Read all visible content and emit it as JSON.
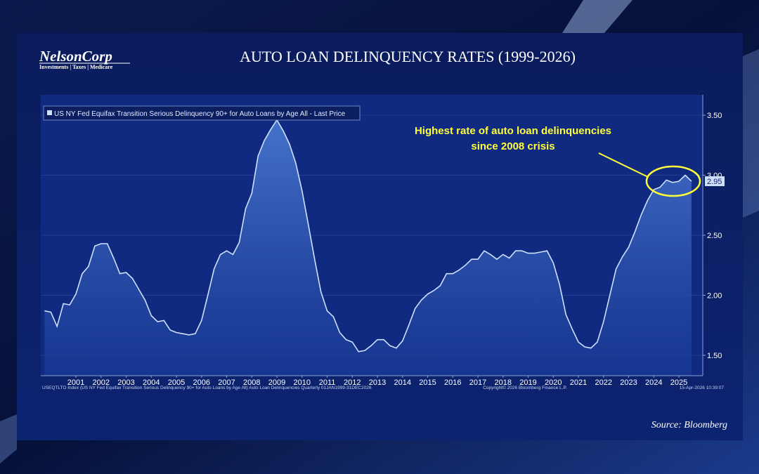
{
  "brand": {
    "name": "NelsonCorp",
    "tagline": "Investments | Taxes | Medicare"
  },
  "chart_data": {
    "type": "area",
    "title": "AUTO LOAN DELINQUENCY RATES (1999-2026)",
    "annotation": "Highest rate of auto loan delinquencies since 2008 crisis",
    "source": "Source: Bloomberg",
    "footer_left": "USEQTLTO Index (US NY Fed Equifax Transition Serious Delinquency 90+ for Auto Loans by Age All) Auto Loan Delinquencies Quarterly 01JAN1999-31DEC2026",
    "footer_center": "Copyright© 2026 Bloomberg Finance L.P.",
    "footer_right": "15-Apr-2026 10:39:07",
    "xlim": [
      2000.1,
      2026.45
    ],
    "ylim": [
      1.33,
      3.67
    ],
    "grid": true,
    "yticks": [
      {
        "value": 1.5,
        "label": "1.50"
      },
      {
        "value": 2,
        "label": "2.00"
      },
      {
        "value": 2.5,
        "label": "2.50"
      },
      {
        "value": 3,
        "label": "3.00"
      },
      {
        "value": 3.5,
        "label": "3.50"
      }
    ],
    "xticks": [
      {
        "value": 2001.5,
        "label": "2001"
      },
      {
        "value": 2002.5,
        "label": "2002"
      },
      {
        "value": 2003.5,
        "label": "2003"
      },
      {
        "value": 2004.5,
        "label": "2004"
      },
      {
        "value": 2005.5,
        "label": "2005"
      },
      {
        "value": 2006.5,
        "label": "2006"
      },
      {
        "value": 2007.5,
        "label": "2007"
      },
      {
        "value": 2008.5,
        "label": "2008"
      },
      {
        "value": 2009.5,
        "label": "2009"
      },
      {
        "value": 2010.5,
        "label": "2010"
      },
      {
        "value": 2011.5,
        "label": "2011"
      },
      {
        "value": 2012.5,
        "label": "2012"
      },
      {
        "value": 2013.5,
        "label": "2013"
      },
      {
        "value": 2014.5,
        "label": "2014"
      },
      {
        "value": 2015.5,
        "label": "2015"
      },
      {
        "value": 2016.5,
        "label": "2016"
      },
      {
        "value": 2017.5,
        "label": "2017"
      },
      {
        "value": 2018.5,
        "label": "2018"
      },
      {
        "value": 2019.5,
        "label": "2019"
      },
      {
        "value": 2020.5,
        "label": "2020"
      },
      {
        "value": 2021.5,
        "label": "2021"
      },
      {
        "value": 2022.5,
        "label": "2022"
      },
      {
        "value": 2023.5,
        "label": "2023"
      },
      {
        "value": 2024.5,
        "label": "2024"
      },
      {
        "value": 2025.5,
        "label": "2025"
      }
    ],
    "x": [
      2000.25,
      2000.5,
      2000.75,
      2001,
      2001.25,
      2001.5,
      2001.75,
      2002,
      2002.25,
      2002.5,
      2002.75,
      2003,
      2003.25,
      2003.5,
      2003.75,
      2004,
      2004.25,
      2004.5,
      2004.75,
      2005,
      2005.25,
      2005.5,
      2005.75,
      2006,
      2006.25,
      2006.5,
      2006.75,
      2007,
      2007.25,
      2007.5,
      2007.75,
      2008,
      2008.25,
      2008.5,
      2008.75,
      2009,
      2009.25,
      2009.5,
      2009.75,
      2010,
      2010.25,
      2010.5,
      2010.75,
      2011,
      2011.25,
      2011.5,
      2011.75,
      2012,
      2012.25,
      2012.5,
      2012.75,
      2013,
      2013.25,
      2013.5,
      2013.75,
      2014,
      2014.25,
      2014.5,
      2014.75,
      2015,
      2015.25,
      2015.5,
      2015.75,
      2016,
      2016.25,
      2016.5,
      2016.75,
      2017,
      2017.25,
      2017.5,
      2017.75,
      2018,
      2018.25,
      2018.5,
      2018.75,
      2019,
      2019.25,
      2019.5,
      2019.75,
      2020,
      2020.25,
      2020.5,
      2020.75,
      2021,
      2021.25,
      2021.5,
      2021.75,
      2022,
      2022.25,
      2022.5,
      2022.75,
      2023,
      2023.25,
      2023.5,
      2023.75,
      2024,
      2024.25,
      2024.5,
      2024.75,
      2025,
      2025.25,
      2025.5,
      2025.75,
      2026
    ],
    "series": [
      {
        "name": "US NY Fed Equifax Transition Serious Delinquency 90+ for Auto Loans by Age All - Last Price",
        "color": "#cfe0ff",
        "values": [
          1.87,
          1.86,
          1.74,
          1.93,
          1.92,
          2.01,
          2.18,
          2.24,
          2.41,
          2.43,
          2.43,
          2.31,
          2.18,
          2.19,
          2.14,
          2.05,
          1.96,
          1.83,
          1.78,
          1.79,
          1.71,
          1.69,
          1.68,
          1.67,
          1.68,
          1.79,
          2.0,
          2.22,
          2.34,
          2.37,
          2.34,
          2.44,
          2.72,
          2.85,
          3.16,
          3.29,
          3.38,
          3.46,
          3.37,
          3.26,
          3.1,
          2.87,
          2.59,
          2.3,
          2.03,
          1.87,
          1.82,
          1.69,
          1.63,
          1.61,
          1.53,
          1.54,
          1.58,
          1.63,
          1.63,
          1.58,
          1.56,
          1.62,
          1.75,
          1.89,
          1.96,
          2.01,
          2.04,
          2.08,
          2.18,
          2.18,
          2.21,
          2.25,
          2.3,
          2.3,
          2.37,
          2.34,
          2.3,
          2.34,
          2.31,
          2.37,
          2.37,
          2.35,
          2.35,
          2.36,
          2.37,
          2.27,
          2.09,
          1.84,
          1.72,
          1.61,
          1.57,
          1.56,
          1.61,
          1.78,
          2.0,
          2.22,
          2.32,
          2.4,
          2.53,
          2.67,
          2.79,
          2.88,
          2.9,
          2.96,
          2.94,
          2.95,
          3.0,
          2.95
        ]
      }
    ]
  }
}
